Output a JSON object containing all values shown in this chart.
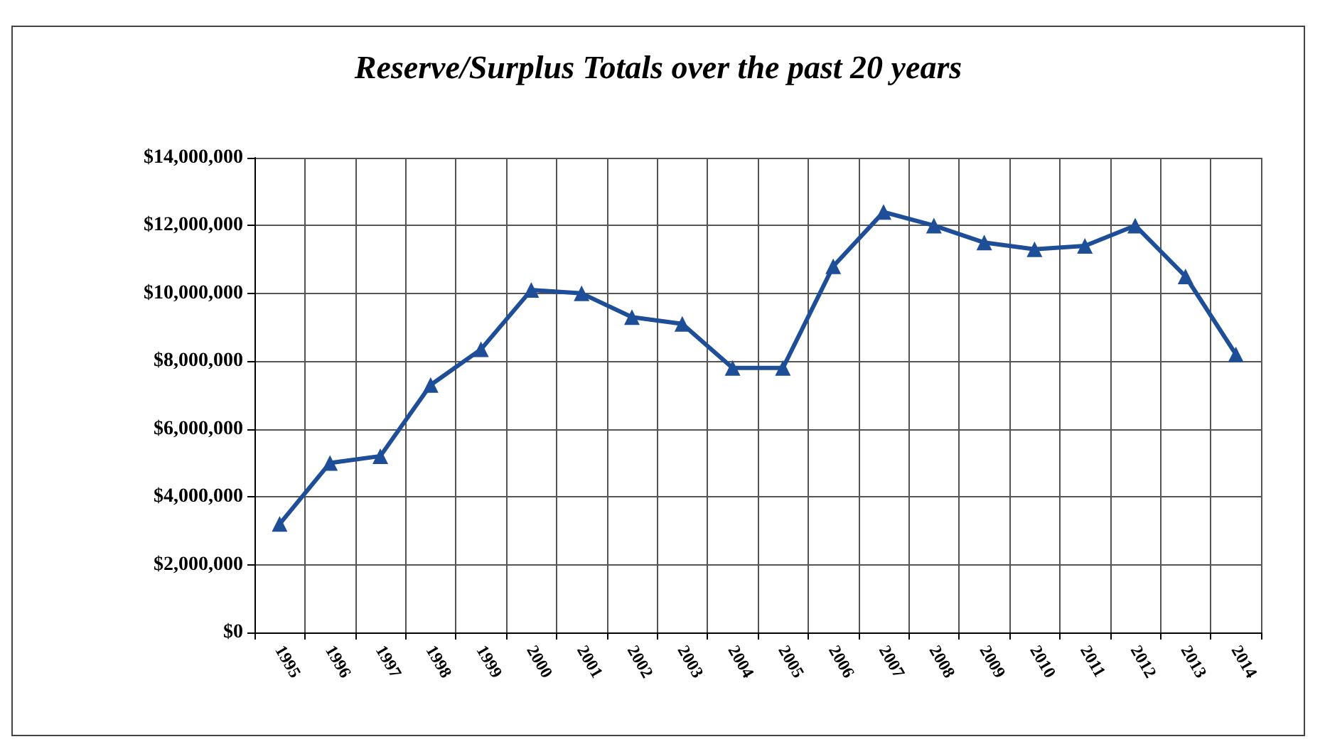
{
  "chart_data": {
    "type": "line",
    "title": "Reserve/Surplus Totals over the past 20 years",
    "categories": [
      "1995",
      "1996",
      "1997",
      "1998",
      "1999",
      "2000",
      "2001",
      "2002",
      "2003",
      "2004",
      "2005",
      "2006",
      "2007",
      "2008",
      "2009",
      "2010",
      "2011",
      "2012",
      "2013",
      "2014"
    ],
    "series": [
      {
        "color": "#1f4e99",
        "values": [
          3200000,
          5000000,
          5200000,
          7300000,
          8350000,
          10100000,
          10000000,
          9300000,
          9100000,
          7800000,
          7800000,
          10800000,
          12400000,
          12000000,
          11500000,
          11300000,
          11400000,
          12000000,
          10500000,
          8200000
        ]
      }
    ],
    "ylim": [
      0,
      14000000
    ],
    "yticks": [
      {
        "value": 0,
        "label": "$0"
      },
      {
        "value": 2000000,
        "label": "$2,000,000"
      },
      {
        "value": 4000000,
        "label": "$4,000,000"
      },
      {
        "value": 6000000,
        "label": "$6,000,000"
      },
      {
        "value": 8000000,
        "label": "$8,000,000"
      },
      {
        "value": 10000000,
        "label": "$10,000,000"
      },
      {
        "value": 12000000,
        "label": "$12,000,000"
      },
      {
        "value": 14000000,
        "label": "$14,000,000"
      }
    ],
    "grid": true,
    "marker": "triangle",
    "line_style": "solid"
  }
}
